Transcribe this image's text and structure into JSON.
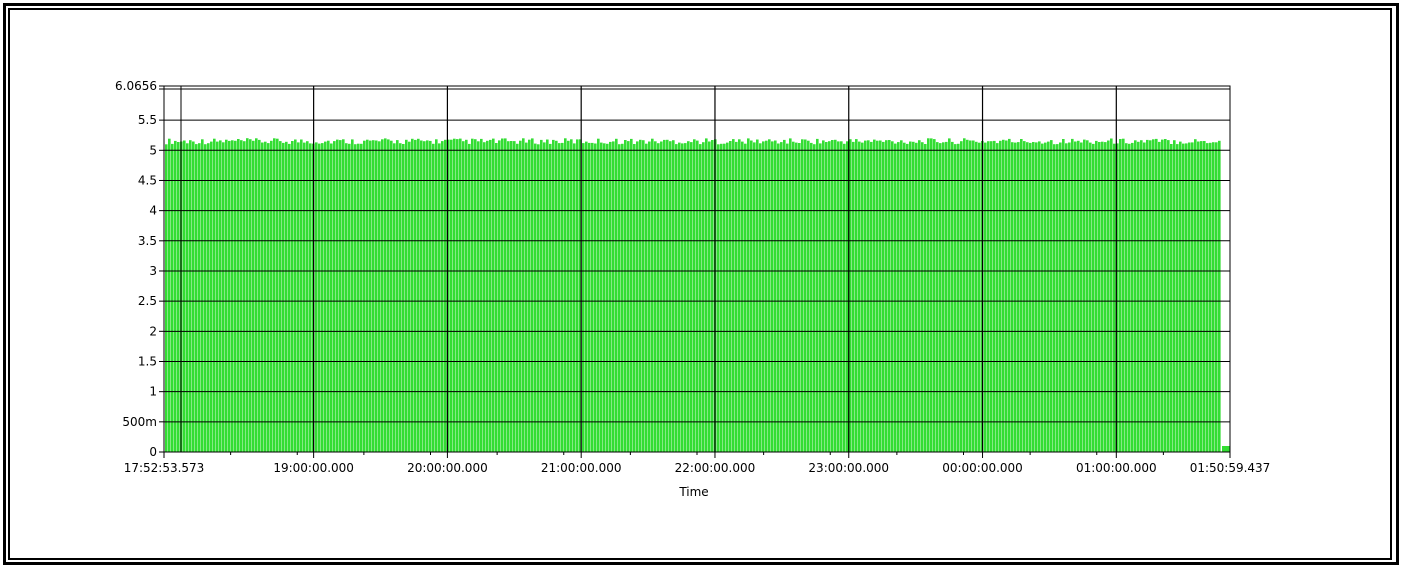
{
  "chart_data": {
    "type": "bar",
    "title": "",
    "xlabel": "Time",
    "ylabel": "",
    "x_start": "17:52:53.573",
    "x_end": "01:50:59.437",
    "x_tick_labels": [
      "17:52:53.573",
      "19:00:00.000",
      "20:00:00.000",
      "21:00:00.000",
      "22:00:00.000",
      "23:00:00.000",
      "00:00:00.000",
      "01:00:00.000",
      "01:50:59.437"
    ],
    "y_tick_labels": [
      "6.0656",
      "5.5",
      "5",
      "4.5",
      "4",
      "3.5",
      "3",
      "2.5",
      "2",
      "1.5",
      "1",
      "500m",
      "0"
    ],
    "y_ticks": [
      6.0656,
      5.5,
      5,
      4.5,
      4,
      3.5,
      3,
      2.5,
      2,
      1.5,
      1,
      0.5,
      0
    ],
    "ylim": [
      0,
      6.0656
    ],
    "series": [
      {
        "typical_value_range": [
          5.1,
          5.2
        ],
        "final_value": 0.1
      }
    ],
    "grid": true,
    "colors": {
      "bars": "#33dd33",
      "bar_edge": "#2bbf2b",
      "grid": "#000000"
    }
  }
}
